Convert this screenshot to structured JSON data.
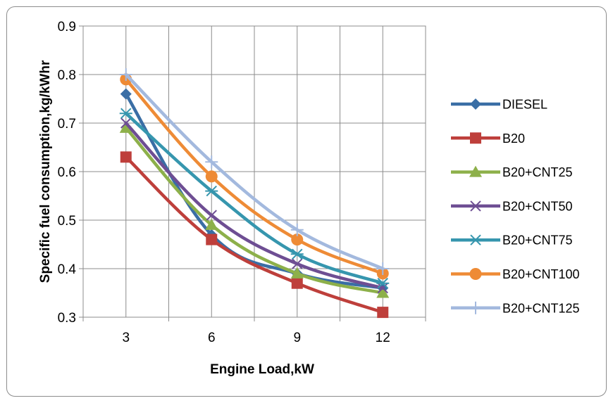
{
  "chart_data": {
    "type": "line",
    "title": "",
    "xlabel": "Engine Load,kW",
    "ylabel": "Specific fuel consumption,kg/kWhr",
    "x": [
      3,
      6,
      9,
      12
    ],
    "x_tick_labels": [
      "3",
      "6",
      "9",
      "12"
    ],
    "ylim": [
      0.3,
      0.9
    ],
    "y_ticks": [
      0.3,
      0.4,
      0.5,
      0.6,
      0.7,
      0.8,
      0.9
    ],
    "y_tick_labels": [
      "0.3",
      "0.4",
      "0.5",
      "0.6",
      "0.7",
      "0.8",
      "0.9"
    ],
    "grid": true,
    "legend_position": "right",
    "series": [
      {
        "name": "DIESEL",
        "values": [
          0.76,
          0.47,
          0.39,
          0.36
        ],
        "color": "#3A6EA5",
        "marker": "diamond"
      },
      {
        "name": "B20",
        "values": [
          0.63,
          0.46,
          0.37,
          0.31
        ],
        "color": "#BE3F3B",
        "marker": "square"
      },
      {
        "name": "B20+CNT25",
        "values": [
          0.69,
          0.49,
          0.39,
          0.35
        ],
        "color": "#8DB04A",
        "marker": "triangle"
      },
      {
        "name": "B20+CNT50",
        "values": [
          0.7,
          0.51,
          0.41,
          0.36
        ],
        "color": "#6E4E93",
        "marker": "x"
      },
      {
        "name": "B20+CNT75",
        "values": [
          0.72,
          0.56,
          0.43,
          0.37
        ],
        "color": "#3696AE",
        "marker": "asterisk"
      },
      {
        "name": "B20+CNT100",
        "values": [
          0.79,
          0.59,
          0.46,
          0.39
        ],
        "color": "#EE8B36",
        "marker": "circle"
      },
      {
        "name": "B20+CNT125",
        "values": [
          0.8,
          0.62,
          0.48,
          0.4
        ],
        "color": "#A3B9DE",
        "marker": "plus"
      }
    ]
  }
}
